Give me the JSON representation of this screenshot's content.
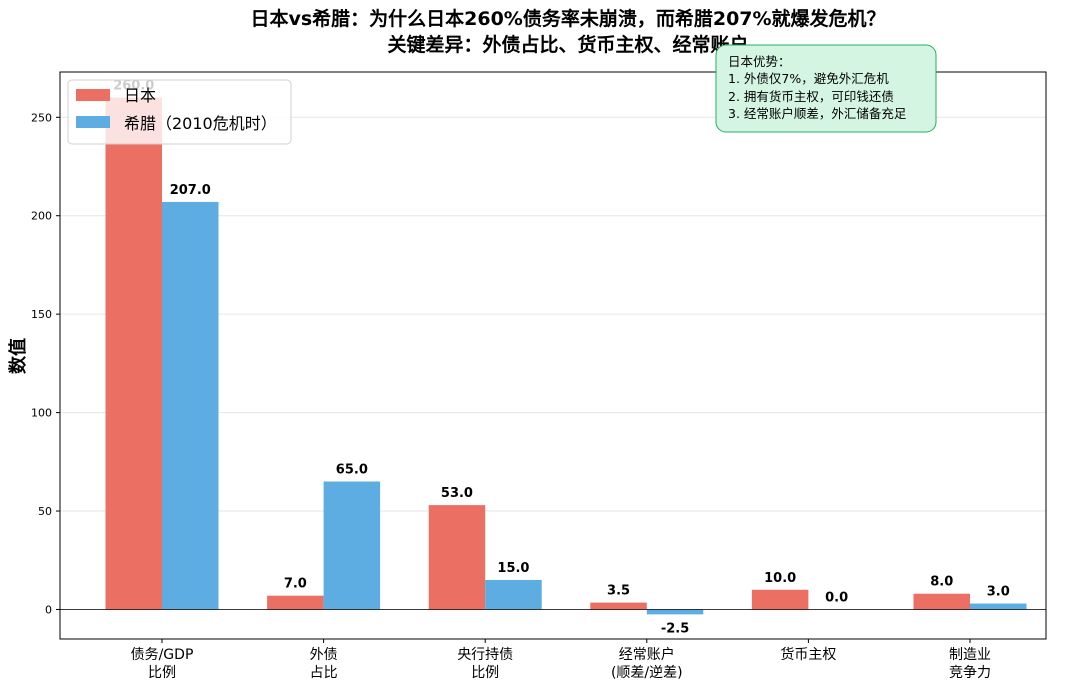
{
  "chart_data": {
    "type": "bar",
    "title": "日本vs希腊：为什么日本260%债务率未崩溃，而希腊207%就爆发危机？",
    "subtitle": "关键差异：外债占比、货币主权、经常账户",
    "xlabel": "",
    "ylabel": "数值",
    "ylim": [
      -15,
      273
    ],
    "yticks": [
      0,
      50,
      100,
      150,
      200,
      250
    ],
    "grid": true,
    "legend_position": "top-left",
    "categories": [
      [
        "债务/GDP",
        "比例"
      ],
      [
        "外债",
        "占比"
      ],
      [
        "央行持债",
        "比例"
      ],
      [
        "经常账户",
        "(顺差/逆差)"
      ],
      [
        "货币主权"
      ],
      [
        "制造业",
        "竞争力"
      ]
    ],
    "series": [
      {
        "name": "日本",
        "color": "#eb6f63",
        "values": [
          260.0,
          7.0,
          53.0,
          3.5,
          10.0,
          8.0
        ],
        "labels": [
          "260.0",
          "7.0",
          "53.0",
          "3.5",
          "10.0",
          "8.0"
        ]
      },
      {
        "name": "希腊（2010危机时）",
        "color": "#5dade2",
        "values": [
          207.0,
          65.0,
          15.0,
          -2.5,
          0.0,
          3.0
        ],
        "labels": [
          "207.0",
          "65.0",
          "15.0",
          "-2.5",
          "0.0",
          "3.0"
        ]
      }
    ],
    "annotation": {
      "lines": [
        "日本优势：",
        "1. 外债仅7%，避免外汇危机",
        "2. 拥有货币主权，可印钱还债",
        "3. 经常账户顺差，外汇储备充足"
      ],
      "background": "#d5f5e3",
      "border": "#27ae60"
    }
  }
}
